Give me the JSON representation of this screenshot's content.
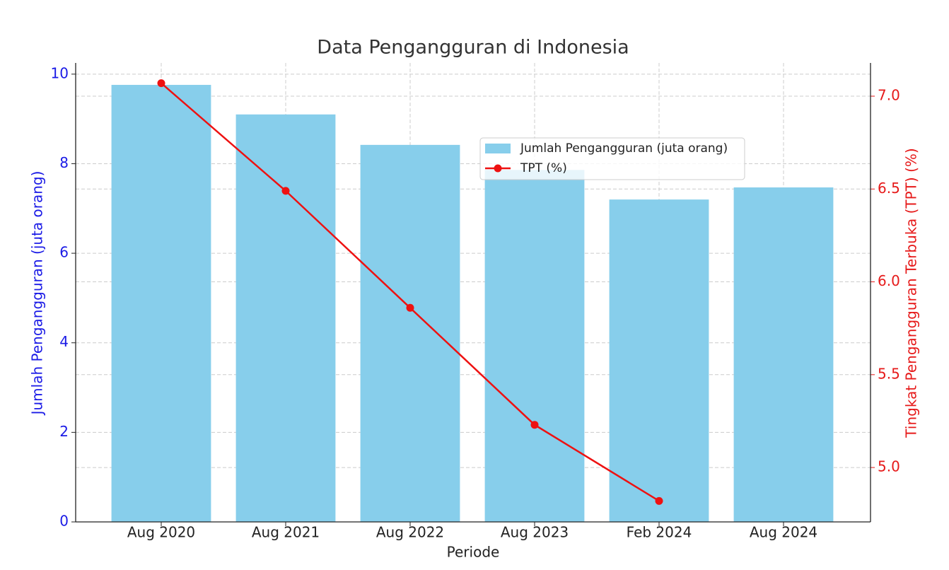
{
  "chart_data": {
    "type": "bar_line",
    "title": "Data Pengangguran di Indonesia",
    "x_label": "Periode",
    "y_label": "Jumlah Pengangguran (juta orang)",
    "y2_label": "Tingkat Pengangguran Terbuka (TPT) (%)",
    "categories": [
      "Aug 2020",
      "Aug 2021",
      "Aug 2022",
      "Aug 2023",
      "Feb 2024",
      "Aug 2024"
    ],
    "series": [
      {
        "name": "Jumlah Pengangguran (juta orang)",
        "type": "bar",
        "color": "#87ceeb",
        "axis": "y",
        "values": [
          9.76,
          9.1,
          8.42,
          7.86,
          7.2,
          7.47
        ]
      },
      {
        "name": "TPT (%)",
        "type": "line",
        "color": "#ee1111",
        "axis": "y2",
        "values": [
          7.07,
          6.49,
          5.86,
          5.23,
          4.82,
          null
        ]
      }
    ],
    "ylim": [
      0,
      10.25
    ],
    "yticks": [
      0,
      2,
      4,
      6,
      8,
      10
    ],
    "y2lim": [
      4.707,
      7.179
    ],
    "y2ticks": [
      {
        "value": 5,
        "label": "5.0"
      },
      5.5,
      {
        "value": 6,
        "label": "6.0"
      },
      6.5,
      {
        "value": 7,
        "label": "7.0"
      }
    ],
    "grid": true,
    "legend": "upper right"
  }
}
